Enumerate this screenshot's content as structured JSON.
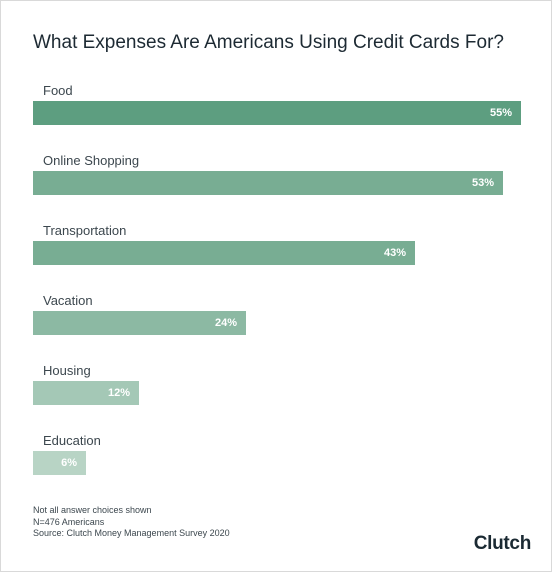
{
  "chart_data": {
    "type": "bar",
    "orientation": "horizontal",
    "title": "What Expenses Are Americans Using Credit Cards For?",
    "categories": [
      "Food",
      "Online Shopping",
      "Transportation",
      "Vacation",
      "Housing",
      "Education"
    ],
    "values": [
      55,
      53,
      43,
      24,
      12,
      6
    ],
    "value_labels": [
      "55%",
      "53%",
      "43%",
      "24%",
      "12%",
      "6%"
    ],
    "unit": "%",
    "xlim": [
      0,
      55
    ],
    "grid": false,
    "legend": "none",
    "colors": [
      "#5d9e80",
      "#78ad93",
      "#78ad93",
      "#8cb9a3",
      "#a4c8b6",
      "#b8d4c5"
    ]
  },
  "notes": [
    "Not all answer choices shown",
    "N=476 Americans",
    "Source: Clutch Money Management Survey 2020"
  ],
  "brand": {
    "name": "Clutch",
    "accent_color": "#e8523f"
  }
}
